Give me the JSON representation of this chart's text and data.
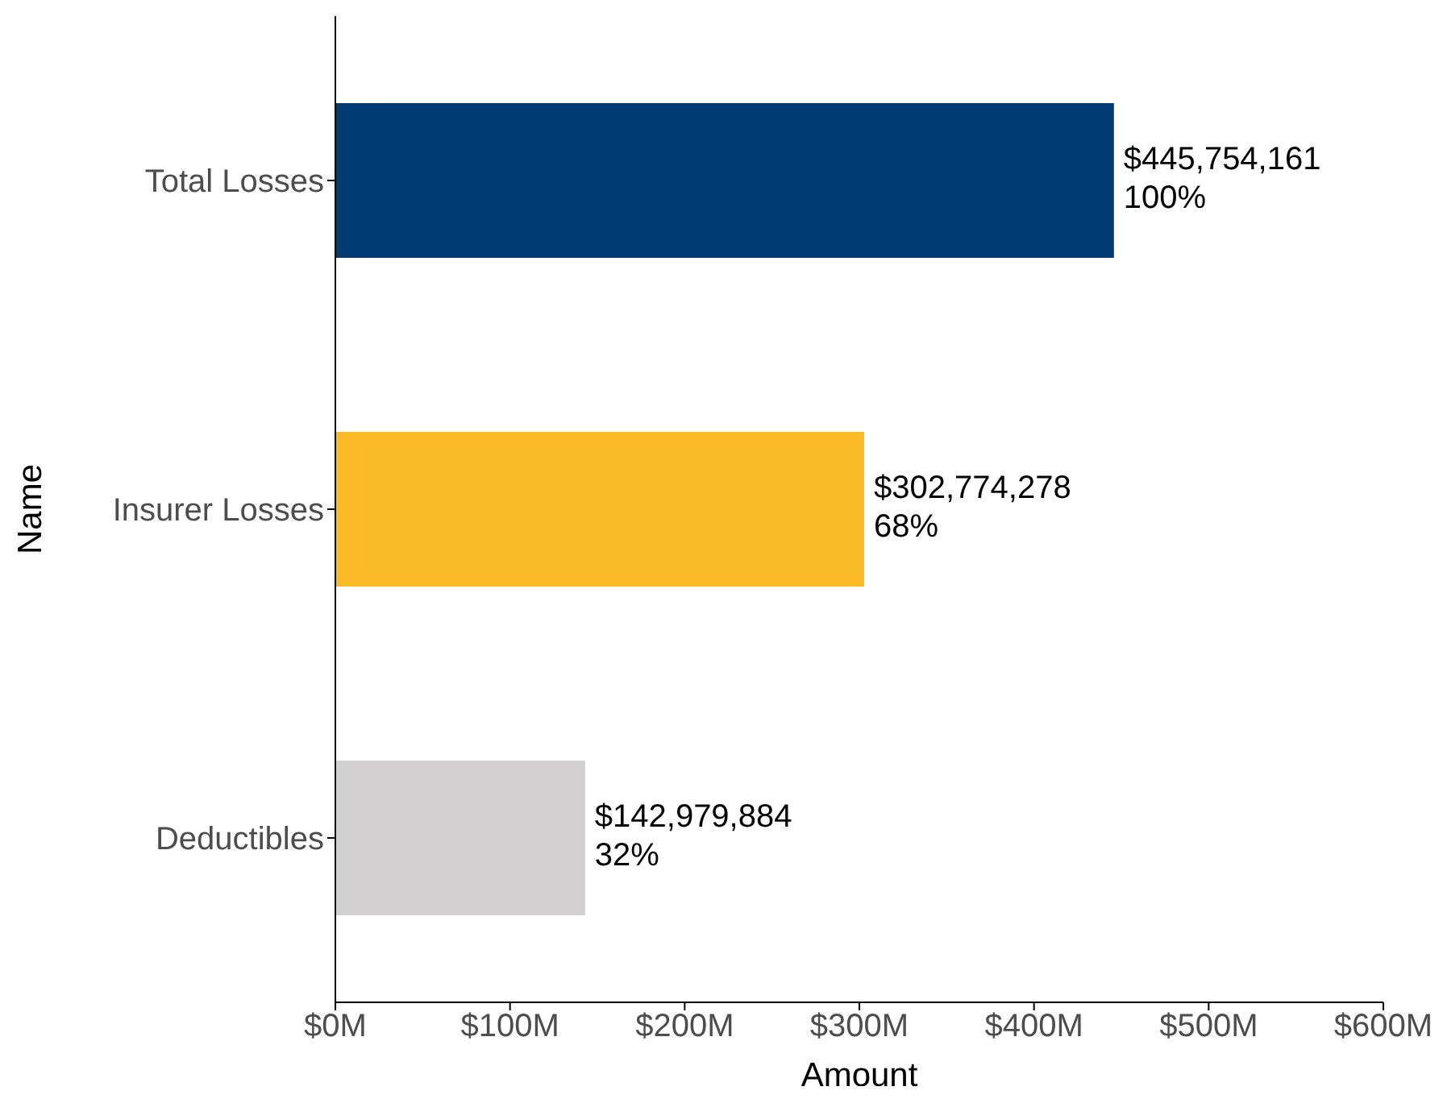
{
  "chart_data": {
    "type": "bar",
    "orientation": "horizontal",
    "categories": [
      "Total Losses",
      "Insurer Losses",
      "Deductibles"
    ],
    "values": [
      445754161,
      302774278,
      142979884
    ],
    "colors": [
      "#023b73",
      "#fbbb27",
      "#d1cfd0"
    ],
    "value_labels": [
      "$445,754,161\n100%",
      "$302,774,278\n68%",
      "$142,979,884\n32%"
    ],
    "xlim": [
      0,
      600000000
    ],
    "xticks": [
      {
        "value": 0,
        "label": "$0M"
      },
      {
        "value": 100000000,
        "label": "$100M"
      },
      {
        "value": 200000000,
        "label": "$200M"
      },
      {
        "value": 300000000,
        "label": "$300M"
      },
      {
        "value": 400000000,
        "label": "$400M"
      },
      {
        "value": 500000000,
        "label": "$500M"
      },
      {
        "value": 600000000,
        "label": "$600M"
      }
    ],
    "xlabel": "Amount",
    "ylabel": "Name",
    "grid": false,
    "legend": false
  }
}
